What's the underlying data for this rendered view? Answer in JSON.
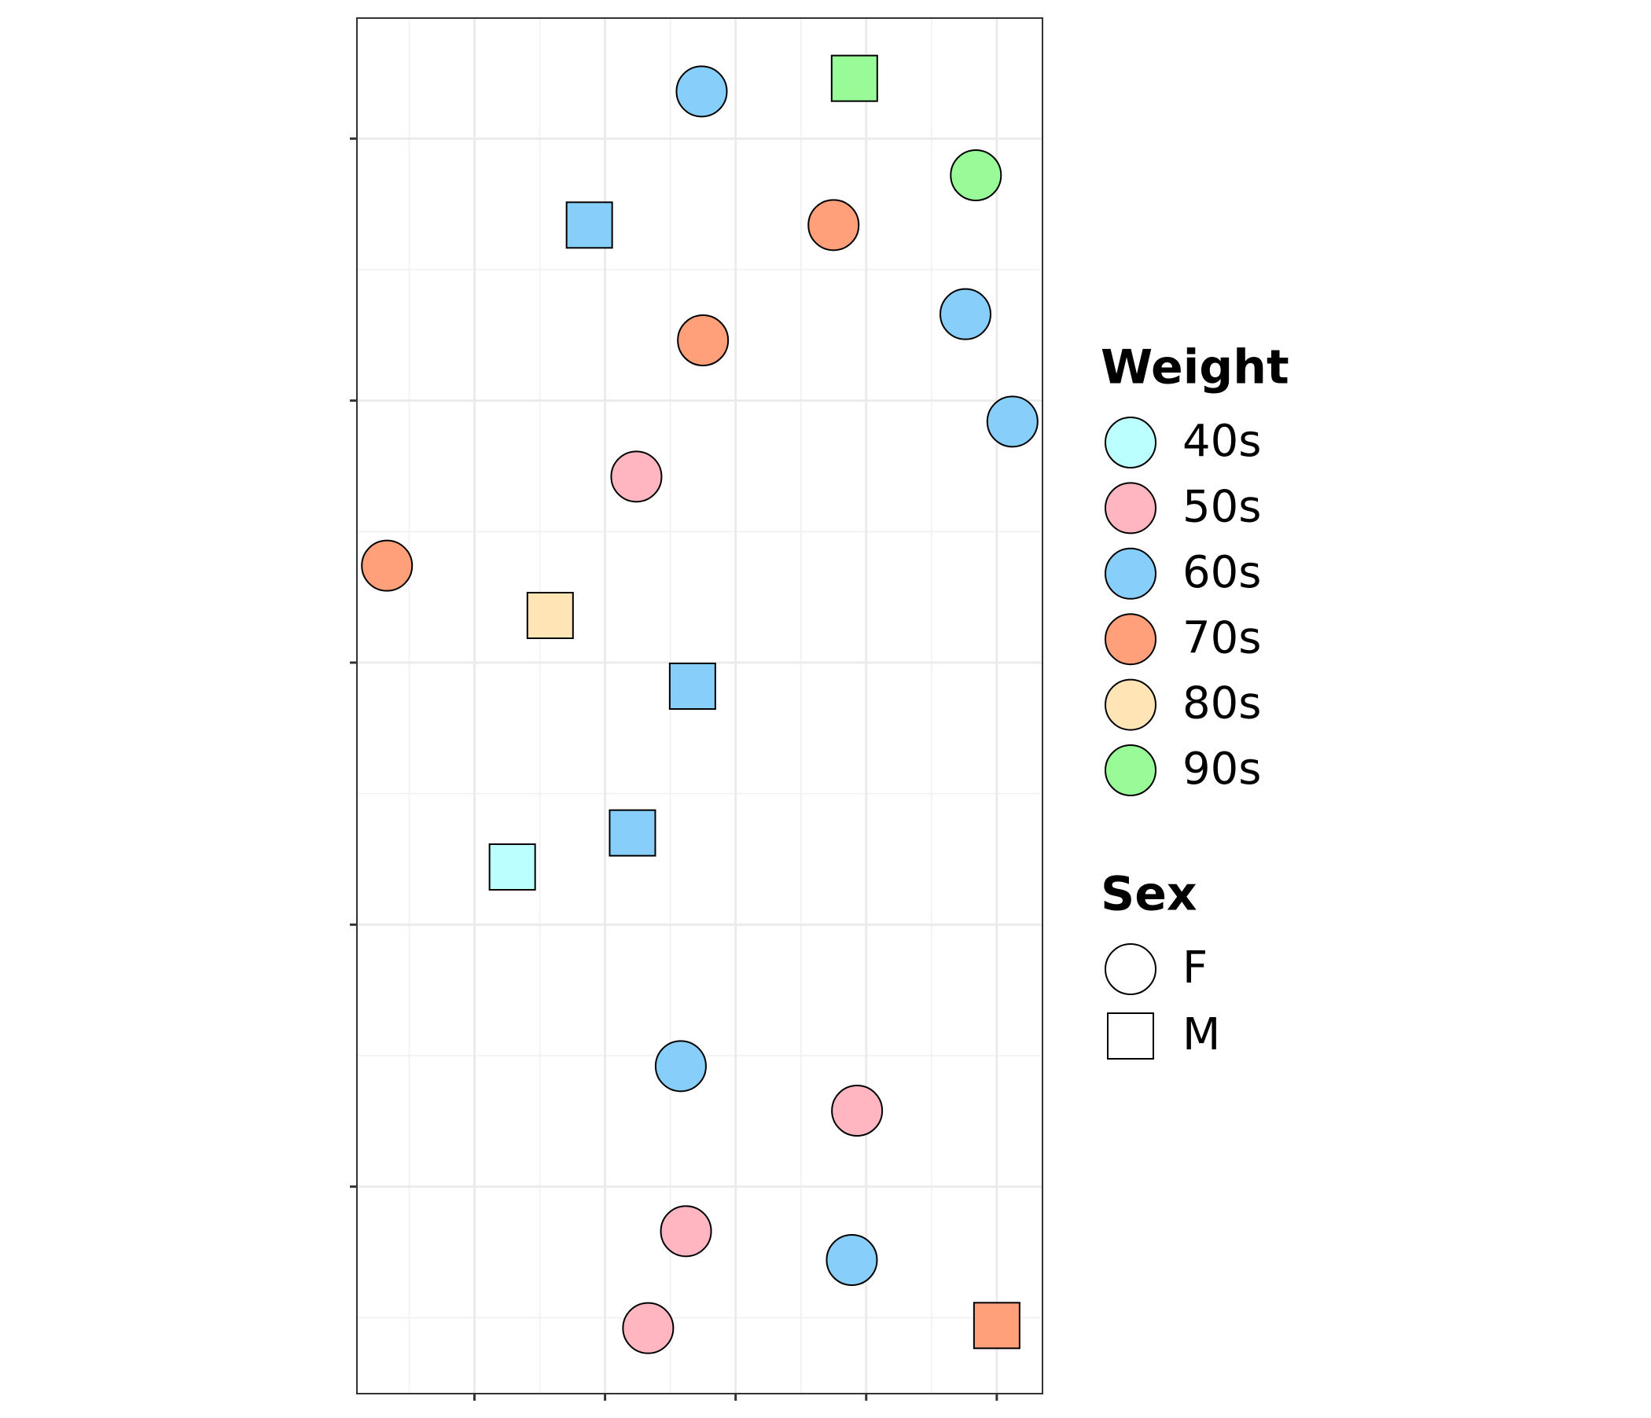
{
  "chart_data": {
    "type": "scatter",
    "xlim": [
      0.1,
      5.35
    ],
    "ylim": [
      0.21,
      5.46
    ],
    "xticks": [
      1,
      2,
      3,
      4,
      5
    ],
    "yticks": [
      1,
      2,
      3,
      4,
      5
    ],
    "grid": true,
    "legend": "right",
    "legend_title": "Weight",
    "shape_legend_title": "Sex",
    "shapes": [
      {
        "name": "F",
        "shape": "circle"
      },
      {
        "name": "M",
        "shape": "square"
      }
    ],
    "series": [
      {
        "name": "40s",
        "color": "#bbffff",
        "x": [
          1.29
        ],
        "y": [
          2.22
        ],
        "sex": [
          "M"
        ]
      },
      {
        "name": "50s",
        "color": "#ffb6c1",
        "x": [
          2.24,
          3.93,
          2.62,
          2.33
        ],
        "y": [
          3.71,
          1.29,
          0.83,
          0.46
        ],
        "sex": [
          "F",
          "F",
          "F",
          "F"
        ]
      },
      {
        "name": "60s",
        "color": "#87cefa",
        "x": [
          2.74,
          1.88,
          4.76,
          5.12,
          2.67,
          2.21,
          2.58,
          3.89
        ],
        "y": [
          5.18,
          4.67,
          4.33,
          3.92,
          2.91,
          2.35,
          1.46,
          0.72
        ],
        "sex": [
          "F",
          "M",
          "F",
          "F",
          "M",
          "M",
          "F",
          "F"
        ]
      },
      {
        "name": "70s",
        "color": "#ffa07a",
        "x": [
          3.75,
          2.75,
          0.33,
          5.0
        ],
        "y": [
          4.67,
          4.23,
          3.37,
          0.47
        ],
        "sex": [
          "F",
          "F",
          "F",
          "M"
        ]
      },
      {
        "name": "80s",
        "color": "#ffe4b5",
        "x": [
          1.58
        ],
        "y": [
          3.18
        ],
        "sex": [
          "M"
        ]
      },
      {
        "name": "90s",
        "color": "#98fb98",
        "x": [
          3.91,
          4.84
        ],
        "y": [
          5.23,
          4.86
        ],
        "sex": [
          "M",
          "F"
        ]
      }
    ]
  }
}
